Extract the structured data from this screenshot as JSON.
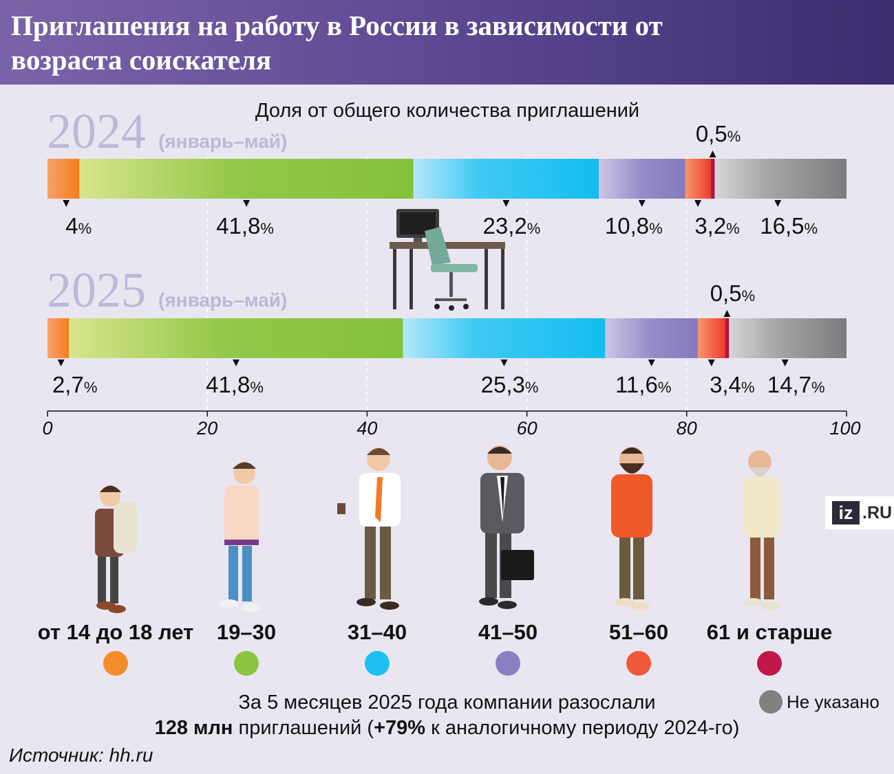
{
  "header": {
    "title": "Приглашения на работу в России в зависимости от возраста соискателя"
  },
  "chart_data": {
    "type": "stacked-bar",
    "title": "Доля от общего количества приглашений",
    "categories": [
      "от 14 до 18 лет",
      "19–30",
      "31–40",
      "41–50",
      "51–60",
      "61 и старше",
      "Не указано"
    ],
    "colors": [
      "#f58c2c",
      "#8bc53f",
      "#1cc1f0",
      "#8a80c1",
      "#f05a3c",
      "#c0184a",
      "#808080"
    ],
    "series": [
      {
        "name": "2024",
        "period": "(январь–май)",
        "values": [
          4,
          41.8,
          23.2,
          10.8,
          3.2,
          0.5,
          16.5
        ],
        "labels": [
          "4",
          "41,8",
          "23,2",
          "10,8",
          "3,2",
          "0,5",
          "16,5"
        ]
      },
      {
        "name": "2025",
        "period": "(январь–май)",
        "values": [
          2.7,
          41.8,
          25.3,
          11.6,
          3.4,
          0.5,
          14.7
        ],
        "labels": [
          "2,7",
          "41,8",
          "25,3",
          "11,6",
          "3,4",
          "0,5",
          "14,7"
        ]
      }
    ],
    "percent_sign": "%",
    "xlim": [
      0,
      100
    ],
    "xticks": [
      "0",
      "20",
      "40",
      "60",
      "80",
      "100"
    ],
    "grid_dashed": true
  },
  "legend": {
    "not_specified": "Не указано"
  },
  "summary": {
    "line1": "За 5 месяцев 2025 года компании разослали",
    "count": "128 млн",
    "text_mid": " приглашений (",
    "growth": "+79%",
    "text_end": " к аналогичному периоду 2024-го)"
  },
  "source": "Источник: hh.ru",
  "logo": {
    "iz": "iz",
    "ru": ".RU"
  }
}
